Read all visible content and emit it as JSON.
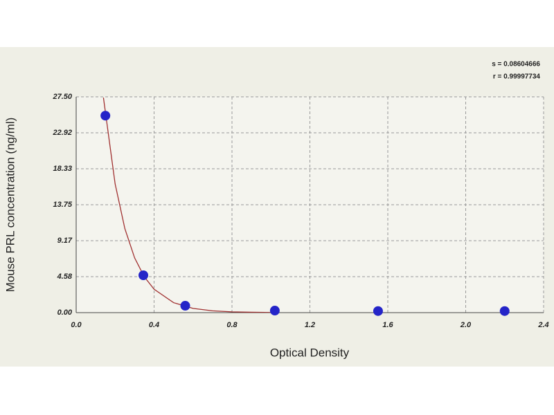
{
  "chart_data": {
    "type": "scatter",
    "x_label": "Optical Density",
    "y_label": "Mouse PRL concentration (ng/ml)",
    "annotations": [
      "s = 0.08604666",
      "r = 0.99997734"
    ],
    "x": [
      0.15,
      0.345,
      0.56,
      1.02,
      1.55,
      2.2
    ],
    "values": [
      25.1,
      4.76,
      0.88,
      0.26,
      0.2,
      0.2
    ],
    "color": "#2424c8",
    "fit_curve": {
      "color": "#a03030",
      "x": [
        0.14,
        0.2,
        0.25,
        0.3,
        0.35,
        0.4,
        0.5,
        0.6,
        0.7,
        0.8,
        0.9,
        1.0
      ],
      "y": [
        27.4,
        16.4,
        10.7,
        6.98,
        4.56,
        2.98,
        1.27,
        0.54,
        0.23,
        0.1,
        0.05,
        0.02
      ]
    },
    "xlim": [
      0,
      2.4
    ],
    "ylim": [
      0,
      27.5
    ],
    "xticks": [
      {
        "value": 0,
        "label": "0.0"
      },
      0.4,
      0.8,
      1.2,
      1.6,
      {
        "value": 2,
        "label": "2.0"
      },
      2.4
    ],
    "yticks": [
      {
        "value": 0,
        "label": "0.00"
      },
      4.58,
      9.17,
      13.75,
      18.33,
      22.92,
      {
        "value": 27.5,
        "label": "27.50"
      }
    ],
    "grid": true
  }
}
